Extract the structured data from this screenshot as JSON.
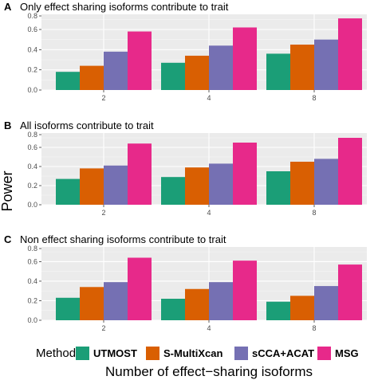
{
  "figure": {
    "y_axis_title": "Power",
    "x_axis_title": "Number of effect−sharing isoforms",
    "legend_title": "Method"
  },
  "chart_data": [
    {
      "type": "bar",
      "panel_letter": "A",
      "title": "Only effect sharing isoforms contribute to trait",
      "xlabel": "Number of effect−sharing isoforms",
      "ylabel": "Power",
      "categories": [
        "2",
        "4",
        "8"
      ],
      "ylim": [
        0,
        0.75
      ],
      "yticks": [
        "0.0",
        "0.2",
        "0.4",
        "0.6",
        "0.8"
      ],
      "grid": true,
      "series": [
        {
          "name": "UTMOST",
          "color": "#1b9e77",
          "values": [
            0.18,
            0.27,
            0.36
          ]
        },
        {
          "name": "S-MultiXcan",
          "color": "#d95f02",
          "values": [
            0.24,
            0.34,
            0.45
          ]
        },
        {
          "name": "sCCA+ACAT",
          "color": "#7570b3",
          "values": [
            0.38,
            0.44,
            0.5
          ]
        },
        {
          "name": "MSG",
          "color": "#e7298a",
          "values": [
            0.58,
            0.62,
            0.71
          ]
        }
      ]
    },
    {
      "type": "bar",
      "panel_letter": "B",
      "title": "All isoforms contribute to trait",
      "xlabel": "Number of effect−sharing isoforms",
      "ylabel": "Power",
      "categories": [
        "2",
        "4",
        "8"
      ],
      "ylim": [
        0,
        0.75
      ],
      "yticks": [
        "0.0",
        "0.2",
        "0.4",
        "0.6",
        "0.8"
      ],
      "grid": true,
      "series": [
        {
          "name": "UTMOST",
          "color": "#1b9e77",
          "values": [
            0.27,
            0.29,
            0.35
          ]
        },
        {
          "name": "S-MultiXcan",
          "color": "#d95f02",
          "values": [
            0.38,
            0.39,
            0.45
          ]
        },
        {
          "name": "sCCA+ACAT",
          "color": "#7570b3",
          "values": [
            0.41,
            0.43,
            0.48
          ]
        },
        {
          "name": "MSG",
          "color": "#e7298a",
          "values": [
            0.64,
            0.65,
            0.7
          ]
        }
      ]
    },
    {
      "type": "bar",
      "panel_letter": "C",
      "title": "Non effect sharing isoforms contribute to trait",
      "xlabel": "Number of effect−sharing isoforms",
      "ylabel": "Power",
      "categories": [
        "2",
        "4",
        "8"
      ],
      "ylim": [
        0,
        0.75
      ],
      "yticks": [
        "0.0",
        "0.2",
        "0.4",
        "0.6",
        "0.8"
      ],
      "grid": true,
      "series": [
        {
          "name": "UTMOST",
          "color": "#1b9e77",
          "values": [
            0.23,
            0.22,
            0.19
          ]
        },
        {
          "name": "S-MultiXcan",
          "color": "#d95f02",
          "values": [
            0.34,
            0.32,
            0.25
          ]
        },
        {
          "name": "sCCA+ACAT",
          "color": "#7570b3",
          "values": [
            0.39,
            0.39,
            0.35
          ]
        },
        {
          "name": "MSG",
          "color": "#e7298a",
          "values": [
            0.64,
            0.61,
            0.57
          ]
        }
      ]
    }
  ],
  "legend": {
    "position": "bottom",
    "items": [
      {
        "label": "UTMOST",
        "color": "#1b9e77"
      },
      {
        "label": "S-MultiXcan",
        "color": "#d95f02"
      },
      {
        "label": "sCCA+ACAT",
        "color": "#7570b3"
      },
      {
        "label": "MSG",
        "color": "#e7298a"
      }
    ]
  },
  "style": {
    "panel_background": "#ebebeb",
    "grid_major": "#ffffff",
    "tick_text": "#4d4d4d"
  }
}
